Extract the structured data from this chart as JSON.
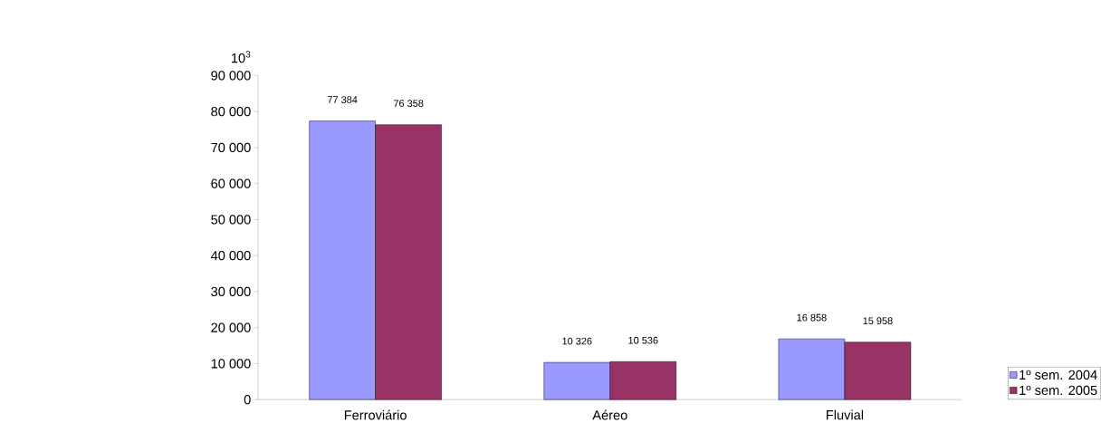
{
  "chart_data": {
    "type": "bar",
    "ylabel": "10$^{3}$",
    "categories": [
      "Ferroviário",
      "Aéreo",
      "Fluvial"
    ],
    "series": [
      {
        "name": "1º sem. 2004",
        "color": "#9999ff",
        "values": [
          77384,
          10326,
          16858
        ],
        "value_labels": [
          "77 384",
          "10 326",
          "16 858"
        ]
      },
      {
        "name": "1º sem. 2005",
        "color": "#993366",
        "values": [
          76358,
          10536,
          15958
        ],
        "value_labels": [
          "76 358",
          "10 536",
          "15 958"
        ]
      }
    ],
    "ylim": [
      0,
      90000
    ],
    "yticks": [
      0,
      {
        "value": 10000,
        "label": "10 000"
      },
      {
        "value": 20000,
        "label": "20 000"
      },
      {
        "value": 30000,
        "label": "30 000"
      },
      {
        "value": 40000,
        "label": "40 000"
      },
      {
        "value": 50000,
        "label": "50 000"
      },
      {
        "value": 60000,
        "label": "60 000"
      },
      {
        "value": 70000,
        "label": "70 000"
      },
      {
        "value": 80000,
        "label": "80 000"
      },
      {
        "value": 90000,
        "label": "90 000"
      }
    ],
    "grid": false,
    "legend": "bottom right"
  }
}
